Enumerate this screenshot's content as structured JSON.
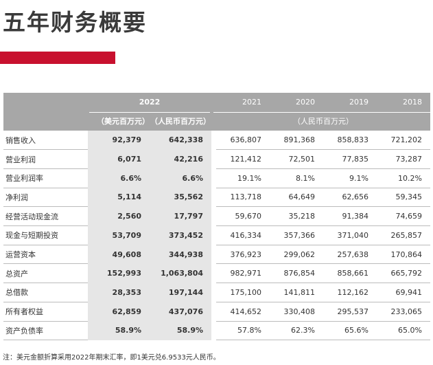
{
  "header": {
    "title": "五年财务概要"
  },
  "table": {
    "header_row1": {
      "year_2022": "2022",
      "years": [
        "2021",
        "2020",
        "2019",
        "2018"
      ]
    },
    "header_row2": {
      "usd": "（美元百万元）",
      "rmb": "（人民币百万元）",
      "rmb_prior": "（人民币百万元）"
    },
    "rows": [
      {
        "label": "销售收入",
        "values": [
          "92,379",
          "642,338",
          "636,807",
          "891,368",
          "858,833",
          "721,202"
        ]
      },
      {
        "label": "营业利润",
        "values": [
          "6,071",
          "42,216",
          "121,412",
          "72,501",
          "77,835",
          "73,287"
        ]
      },
      {
        "label": "营业利润率",
        "values": [
          "6.6%",
          "6.6%",
          "19.1%",
          "8.1%",
          "9.1%",
          "10.2%"
        ]
      },
      {
        "label": "净利润",
        "values": [
          "5,114",
          "35,562",
          "113,718",
          "64,649",
          "62,656",
          "59,345"
        ]
      },
      {
        "label": "经营活动现金流",
        "values": [
          "2,560",
          "17,797",
          "59,670",
          "35,218",
          "91,384",
          "74,659"
        ]
      },
      {
        "label": "现金与短期投资",
        "values": [
          "53,709",
          "373,452",
          "416,334",
          "357,366",
          "371,040",
          "265,857"
        ]
      },
      {
        "label": "运营资本",
        "values": [
          "49,608",
          "344,938",
          "376,923",
          "299,062",
          "257,638",
          "170,864"
        ]
      },
      {
        "label": "总资产",
        "values": [
          "152,993",
          "1,063,804",
          "982,971",
          "876,854",
          "858,661",
          "665,792"
        ]
      },
      {
        "label": "总借款",
        "values": [
          "28,353",
          "197,144",
          "175,100",
          "141,811",
          "112,162",
          "69,941"
        ]
      },
      {
        "label": "所有者权益",
        "values": [
          "62,859",
          "437,076",
          "414,652",
          "330,408",
          "295,537",
          "233,065"
        ]
      },
      {
        "label": "资产负债率",
        "values": [
          "58.9%",
          "58.9%",
          "57.8%",
          "62.3%",
          "65.6%",
          "65.0%"
        ]
      }
    ]
  },
  "footnote": "注：美元金额折算采用2022年期末汇率，即1美元兑6.9533元人民币。"
}
